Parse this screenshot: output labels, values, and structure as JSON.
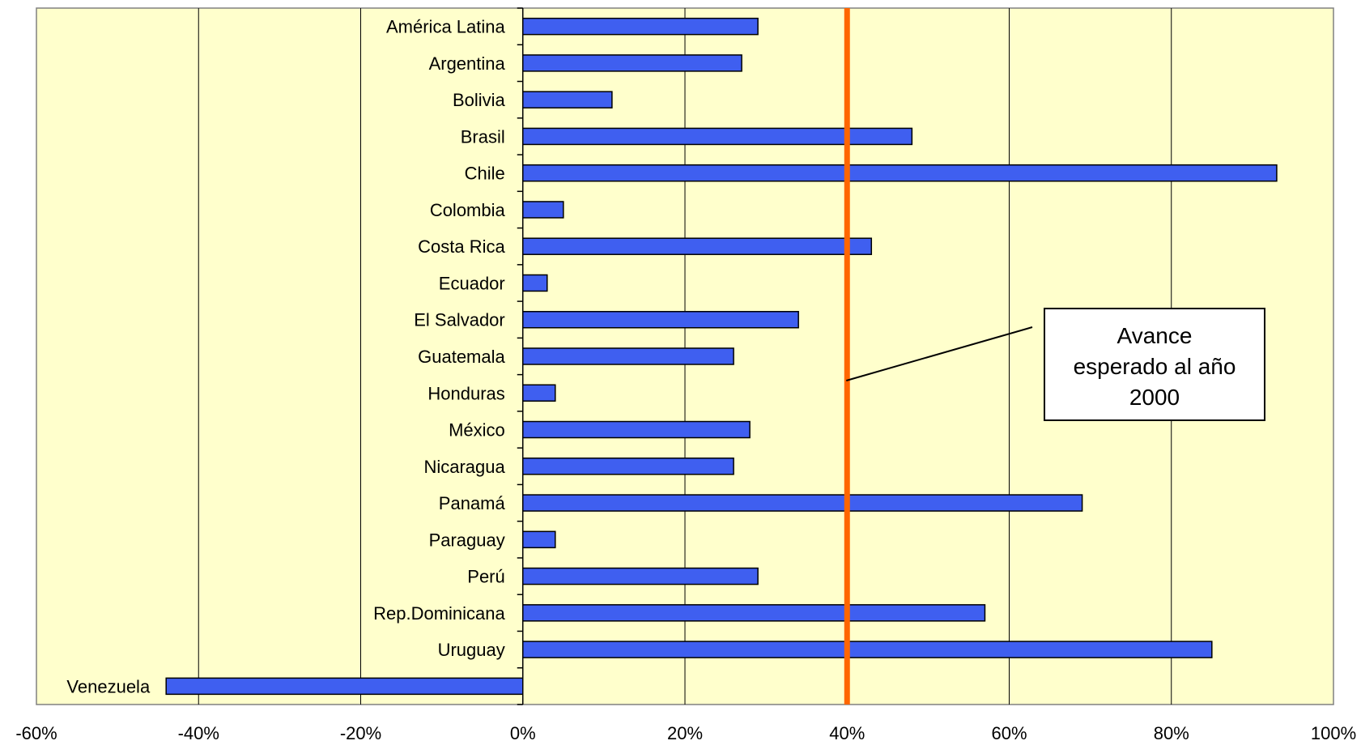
{
  "chart_data": {
    "type": "bar",
    "orientation": "horizontal",
    "categories": [
      "América Latina",
      "Argentina",
      "Bolivia",
      "Brasil",
      "Chile",
      "Colombia",
      "Costa Rica",
      "Ecuador",
      "El Salvador",
      "Guatemala",
      "Honduras",
      "México",
      "Nicaragua",
      "Panamá",
      "Paraguay",
      "Perú",
      "Rep.Dominicana",
      "Uruguay",
      "Venezuela"
    ],
    "values": [
      29,
      27,
      11,
      48,
      93,
      5,
      43,
      3,
      34,
      26,
      4,
      28,
      26,
      69,
      4,
      29,
      57,
      85,
      -44
    ],
    "xlim": [
      -60,
      100
    ],
    "xticks": [
      "-60%",
      "-40%",
      "-20%",
      "0%",
      "20%",
      "40%",
      "60%",
      "80%",
      "100%"
    ],
    "grid": true,
    "colors": {
      "bar": "#3f5ff0",
      "bar_edge": "#000000",
      "plot_bg": "#ffffcc",
      "reference_line": "#ff6600"
    },
    "reference_line": {
      "value": 40
    },
    "annotation": {
      "lines": [
        "Avance",
        "esperado al año",
        "2000"
      ]
    }
  }
}
